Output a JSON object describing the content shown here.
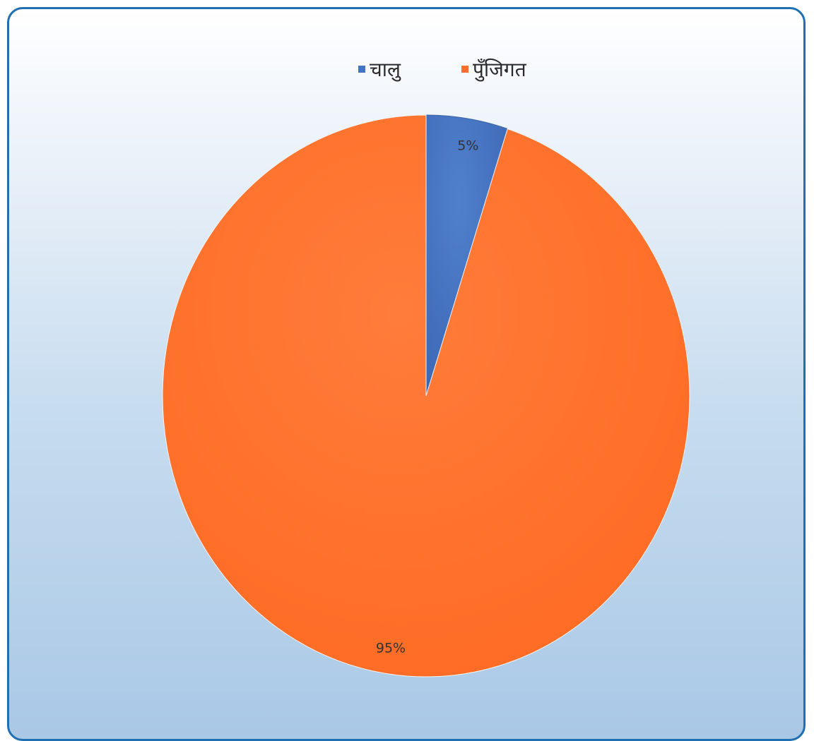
{
  "chart_data": {
    "type": "pie",
    "legend_position": "top-center",
    "categories": [
      "चालु",
      "पुँजिगत"
    ],
    "values": [
      5,
      95
    ],
    "data_labels": [
      "5%",
      "95%"
    ],
    "colors": [
      "#4472c4",
      "#ff6f2a"
    ]
  }
}
